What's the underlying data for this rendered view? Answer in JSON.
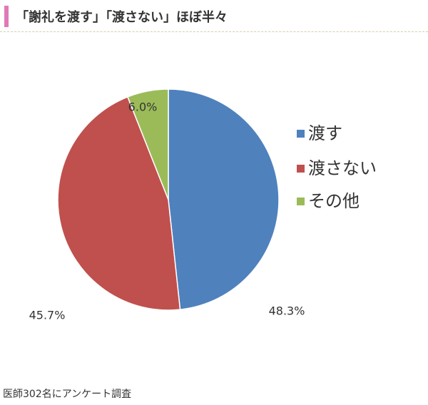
{
  "header": {
    "title": "「謝礼を渡す」「渡さない」ほぼ半々",
    "accent_color": "#e07ab8"
  },
  "chart_data": {
    "type": "pie",
    "categories": [
      "渡す",
      "渡さない",
      "その他"
    ],
    "values": [
      48.3,
      45.7,
      6.0
    ],
    "labels": [
      "48.3%",
      "45.7%",
      "6.0%"
    ],
    "colors": [
      "#4f81bd",
      "#c0504d",
      "#9bbb59"
    ],
    "legend_position": "right"
  },
  "footnote": "医師302名にアンケート調査"
}
